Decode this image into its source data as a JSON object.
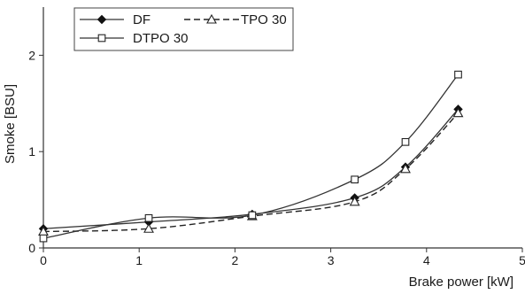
{
  "chart_data": {
    "type": "line",
    "title": "",
    "xlabel": "Brake power [kW]",
    "ylabel": "Smoke [BSU]",
    "xlim": [
      0,
      5
    ],
    "ylim": [
      0,
      2.5
    ],
    "x_ticks": [
      0,
      1,
      2,
      3,
      4,
      5
    ],
    "y_ticks": [
      0,
      1,
      2
    ],
    "x_tick_labels": [
      "0",
      "1",
      "2",
      "3",
      "4",
      "5"
    ],
    "y_tick_labels": [
      "0",
      "1",
      "2"
    ],
    "grid": false,
    "legend_position": "top-left",
    "series": [
      {
        "name": "DF",
        "marker": "filled-diamond",
        "line_style": "solid",
        "x": [
          0,
          1.1,
          2.18,
          3.25,
          3.78,
          4.33
        ],
        "y": [
          0.2,
          0.27,
          0.35,
          0.52,
          0.84,
          1.44
        ]
      },
      {
        "name": "TPO 30",
        "marker": "open-triangle",
        "line_style": "dashed",
        "x": [
          0,
          1.1,
          2.18,
          3.25,
          3.78,
          4.33
        ],
        "y": [
          0.17,
          0.2,
          0.33,
          0.48,
          0.82,
          1.4
        ]
      },
      {
        "name": "DTPO 30",
        "marker": "open-square",
        "line_style": "solid",
        "x": [
          0,
          1.1,
          2.18,
          3.25,
          3.78,
          4.33
        ],
        "y": [
          0.1,
          0.31,
          0.34,
          0.71,
          1.1,
          1.8
        ]
      }
    ]
  }
}
